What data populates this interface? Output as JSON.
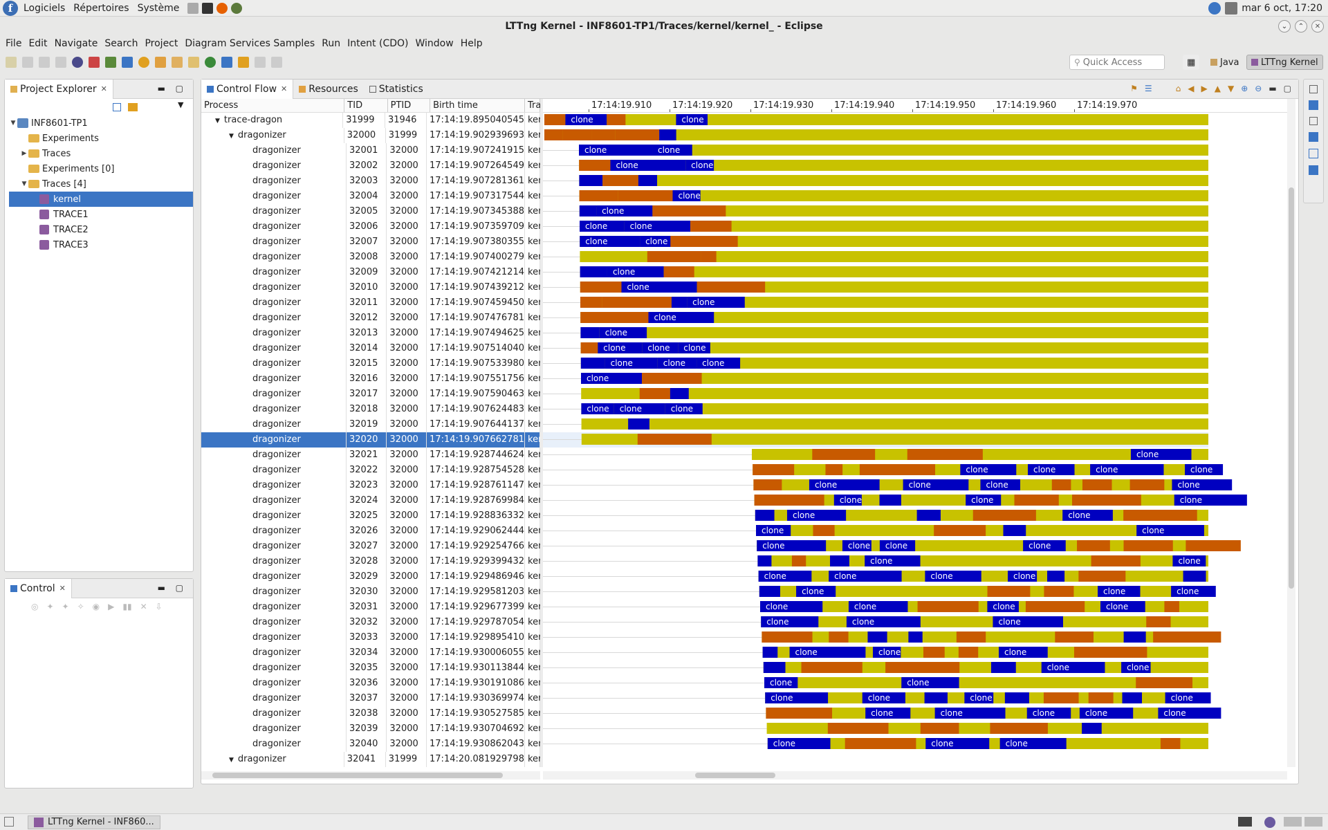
{
  "topbar": {
    "menus": [
      "Logiciels",
      "Répertoires",
      "Système"
    ],
    "clock": "mar  6 oct, 17:20"
  },
  "window": {
    "title": "LTTng Kernel - INF8601-TP1/Traces/kernel/kernel_ - Eclipse"
  },
  "menubar": [
    "File",
    "Edit",
    "Navigate",
    "Search",
    "Project",
    "Diagram Services Samples",
    "Run",
    "Intent (CDO)",
    "Window",
    "Help"
  ],
  "toolbar": {
    "quick_access_placeholder": "Quick Access",
    "perspective_java": "Java",
    "perspective_lttng": "LTTng Kernel"
  },
  "project_explorer": {
    "title": "Project Explorer",
    "tree": [
      {
        "label": "INF8601-TP1",
        "level": 0,
        "icon": "project-icon",
        "twisty": "▼"
      },
      {
        "label": "Experiments",
        "level": 1,
        "icon": "folder-icon",
        "twisty": ""
      },
      {
        "label": "Traces",
        "level": 1,
        "icon": "folder-icon",
        "twisty": "▶"
      },
      {
        "label": "Experiments [0]",
        "level": 1,
        "icon": "folder-icon",
        "twisty": ""
      },
      {
        "label": "Traces [4]",
        "level": 1,
        "icon": "folder-icon",
        "twisty": "▼"
      },
      {
        "label": "kernel",
        "level": 2,
        "icon": "trace-icon",
        "twisty": "",
        "selected": true
      },
      {
        "label": "TRACE1",
        "level": 2,
        "icon": "trace-icon",
        "twisty": ""
      },
      {
        "label": "TRACE2",
        "level": 2,
        "icon": "trace-icon",
        "twisty": ""
      },
      {
        "label": "TRACE3",
        "level": 2,
        "icon": "trace-icon",
        "twisty": ""
      }
    ]
  },
  "control_view": {
    "title": "Control"
  },
  "main_tabs": [
    {
      "label": "Control Flow",
      "active": true
    },
    {
      "label": "Resources",
      "active": false
    },
    {
      "label": "Statistics",
      "active": false
    }
  ],
  "cf_columns": {
    "process": "Process",
    "tid": "TID",
    "ptid": "PTID",
    "birth": "Birth time",
    "trace": "Trac"
  },
  "cf_rows": [
    {
      "process": "trace-dragon",
      "indent": 1,
      "twisty": "▼",
      "tid": "31999",
      "ptid": "31946",
      "birth": "17:14:19.895040545",
      "trace": "ker"
    },
    {
      "process": "dragonizer",
      "indent": 2,
      "twisty": "▼",
      "tid": "32000",
      "ptid": "31999",
      "birth": "17:14:19.902939693",
      "trace": "ker"
    },
    {
      "process": "dragonizer",
      "indent": 3,
      "tid": "32001",
      "ptid": "32000",
      "birth": "17:14:19.907241915",
      "trace": "ker"
    },
    {
      "process": "dragonizer",
      "indent": 3,
      "tid": "32002",
      "ptid": "32000",
      "birth": "17:14:19.907264549",
      "trace": "ker"
    },
    {
      "process": "dragonizer",
      "indent": 3,
      "tid": "32003",
      "ptid": "32000",
      "birth": "17:14:19.907281361",
      "trace": "ker"
    },
    {
      "process": "dragonizer",
      "indent": 3,
      "tid": "32004",
      "ptid": "32000",
      "birth": "17:14:19.907317544",
      "trace": "ker"
    },
    {
      "process": "dragonizer",
      "indent": 3,
      "tid": "32005",
      "ptid": "32000",
      "birth": "17:14:19.907345388",
      "trace": "ker"
    },
    {
      "process": "dragonizer",
      "indent": 3,
      "tid": "32006",
      "ptid": "32000",
      "birth": "17:14:19.907359709",
      "trace": "ker"
    },
    {
      "process": "dragonizer",
      "indent": 3,
      "tid": "32007",
      "ptid": "32000",
      "birth": "17:14:19.907380355",
      "trace": "ker"
    },
    {
      "process": "dragonizer",
      "indent": 3,
      "tid": "32008",
      "ptid": "32000",
      "birth": "17:14:19.907400279",
      "trace": "ker"
    },
    {
      "process": "dragonizer",
      "indent": 3,
      "tid": "32009",
      "ptid": "32000",
      "birth": "17:14:19.907421214",
      "trace": "ker"
    },
    {
      "process": "dragonizer",
      "indent": 3,
      "tid": "32010",
      "ptid": "32000",
      "birth": "17:14:19.907439212",
      "trace": "ker"
    },
    {
      "process": "dragonizer",
      "indent": 3,
      "tid": "32011",
      "ptid": "32000",
      "birth": "17:14:19.907459450",
      "trace": "ker"
    },
    {
      "process": "dragonizer",
      "indent": 3,
      "tid": "32012",
      "ptid": "32000",
      "birth": "17:14:19.907476781",
      "trace": "ker"
    },
    {
      "process": "dragonizer",
      "indent": 3,
      "tid": "32013",
      "ptid": "32000",
      "birth": "17:14:19.907494625",
      "trace": "ker"
    },
    {
      "process": "dragonizer",
      "indent": 3,
      "tid": "32014",
      "ptid": "32000",
      "birth": "17:14:19.907514040",
      "trace": "ker"
    },
    {
      "process": "dragonizer",
      "indent": 3,
      "tid": "32015",
      "ptid": "32000",
      "birth": "17:14:19.907533980",
      "trace": "ker"
    },
    {
      "process": "dragonizer",
      "indent": 3,
      "tid": "32016",
      "ptid": "32000",
      "birth": "17:14:19.907551756",
      "trace": "ker"
    },
    {
      "process": "dragonizer",
      "indent": 3,
      "tid": "32017",
      "ptid": "32000",
      "birth": "17:14:19.907590463",
      "trace": "ker"
    },
    {
      "process": "dragonizer",
      "indent": 3,
      "tid": "32018",
      "ptid": "32000",
      "birth": "17:14:19.907624483",
      "trace": "ker"
    },
    {
      "process": "dragonizer",
      "indent": 3,
      "tid": "32019",
      "ptid": "32000",
      "birth": "17:14:19.907644137",
      "trace": "ker"
    },
    {
      "process": "dragonizer",
      "indent": 3,
      "tid": "32020",
      "ptid": "32000",
      "birth": "17:14:19.907662781",
      "trace": "ker",
      "selected": true
    },
    {
      "process": "dragonizer",
      "indent": 3,
      "tid": "32021",
      "ptid": "32000",
      "birth": "17:14:19.928744624",
      "trace": "ker"
    },
    {
      "process": "dragonizer",
      "indent": 3,
      "tid": "32022",
      "ptid": "32000",
      "birth": "17:14:19.928754528",
      "trace": "ker"
    },
    {
      "process": "dragonizer",
      "indent": 3,
      "tid": "32023",
      "ptid": "32000",
      "birth": "17:14:19.928761147",
      "trace": "ker"
    },
    {
      "process": "dragonizer",
      "indent": 3,
      "tid": "32024",
      "ptid": "32000",
      "birth": "17:14:19.928769984",
      "trace": "ker"
    },
    {
      "process": "dragonizer",
      "indent": 3,
      "tid": "32025",
      "ptid": "32000",
      "birth": "17:14:19.928836332",
      "trace": "ker"
    },
    {
      "process": "dragonizer",
      "indent": 3,
      "tid": "32026",
      "ptid": "32000",
      "birth": "17:14:19.929062444",
      "trace": "ker"
    },
    {
      "process": "dragonizer",
      "indent": 3,
      "tid": "32027",
      "ptid": "32000",
      "birth": "17:14:19.929254766",
      "trace": "ker"
    },
    {
      "process": "dragonizer",
      "indent": 3,
      "tid": "32028",
      "ptid": "32000",
      "birth": "17:14:19.929399432",
      "trace": "ker"
    },
    {
      "process": "dragonizer",
      "indent": 3,
      "tid": "32029",
      "ptid": "32000",
      "birth": "17:14:19.929486946",
      "trace": "ker"
    },
    {
      "process": "dragonizer",
      "indent": 3,
      "tid": "32030",
      "ptid": "32000",
      "birth": "17:14:19.929581203",
      "trace": "ker"
    },
    {
      "process": "dragonizer",
      "indent": 3,
      "tid": "32031",
      "ptid": "32000",
      "birth": "17:14:19.929677399",
      "trace": "ker"
    },
    {
      "process": "dragonizer",
      "indent": 3,
      "tid": "32032",
      "ptid": "32000",
      "birth": "17:14:19.929787054",
      "trace": "ker"
    },
    {
      "process": "dragonizer",
      "indent": 3,
      "tid": "32033",
      "ptid": "32000",
      "birth": "17:14:19.929895410",
      "trace": "ker"
    },
    {
      "process": "dragonizer",
      "indent": 3,
      "tid": "32034",
      "ptid": "32000",
      "birth": "17:14:19.930006055",
      "trace": "ker"
    },
    {
      "process": "dragonizer",
      "indent": 3,
      "tid": "32035",
      "ptid": "32000",
      "birth": "17:14:19.930113844",
      "trace": "ker"
    },
    {
      "process": "dragonizer",
      "indent": 3,
      "tid": "32036",
      "ptid": "32000",
      "birth": "17:14:19.930191086",
      "trace": "ker"
    },
    {
      "process": "dragonizer",
      "indent": 3,
      "tid": "32037",
      "ptid": "32000",
      "birth": "17:14:19.930369974",
      "trace": "ker"
    },
    {
      "process": "dragonizer",
      "indent": 3,
      "tid": "32038",
      "ptid": "32000",
      "birth": "17:14:19.930527585",
      "trace": "ker"
    },
    {
      "process": "dragonizer",
      "indent": 3,
      "tid": "32039",
      "ptid": "32000",
      "birth": "17:14:19.930704692",
      "trace": "ker"
    },
    {
      "process": "dragonizer",
      "indent": 3,
      "tid": "32040",
      "ptid": "32000",
      "birth": "17:14:19.930862043",
      "trace": "ker"
    },
    {
      "process": "dragonizer",
      "indent": 2,
      "twisty": "▼",
      "tid": "32041",
      "ptid": "31999",
      "birth": "17:14:20.081929798",
      "trace": "ker"
    }
  ],
  "timescale": [
    "17:14:19.910",
    "17:14:19.920",
    "17:14:19.930",
    "17:14:19.940",
    "17:14:19.950",
    "17:14:19.960",
    "17:14:19.970"
  ],
  "state_colors": {
    "running": "#c8c200",
    "syscall": "#0000c0",
    "wait": "#c85a00"
  },
  "state_label": "clone",
  "taskbar": {
    "item": "LTTng Kernel - INF860..."
  }
}
